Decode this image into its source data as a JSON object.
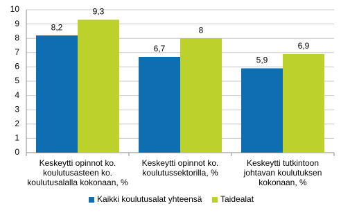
{
  "chart_data": {
    "type": "bar",
    "categories": [
      "Keskeytti opinnot ko.\nkoulutusasteen ko.\nkoulutusalalla kokonaan, %",
      "Keskeytti opinnot ko.\nkoulutussektorilla, %",
      "Keskeytti tutkintoon\njohtavan koulutuksen\nkokonaan, %"
    ],
    "series": [
      {
        "name": "Kaikki koulutusalat yhteensä",
        "color": "#0f6eb0",
        "values": [
          8.2,
          6.7,
          5.9
        ],
        "value_labels": [
          "8,2",
          "6,7",
          "5,9"
        ]
      },
      {
        "name": "Taidealat",
        "color": "#bcd12b",
        "values": [
          9.3,
          8,
          6.9
        ],
        "value_labels": [
          "9,3",
          "8",
          "6,9"
        ]
      }
    ],
    "ylim": [
      0,
      10
    ],
    "yticks": [
      0,
      1,
      2,
      3,
      4,
      5,
      6,
      7,
      8,
      9,
      10
    ],
    "grid": true,
    "legend": "bottom"
  }
}
